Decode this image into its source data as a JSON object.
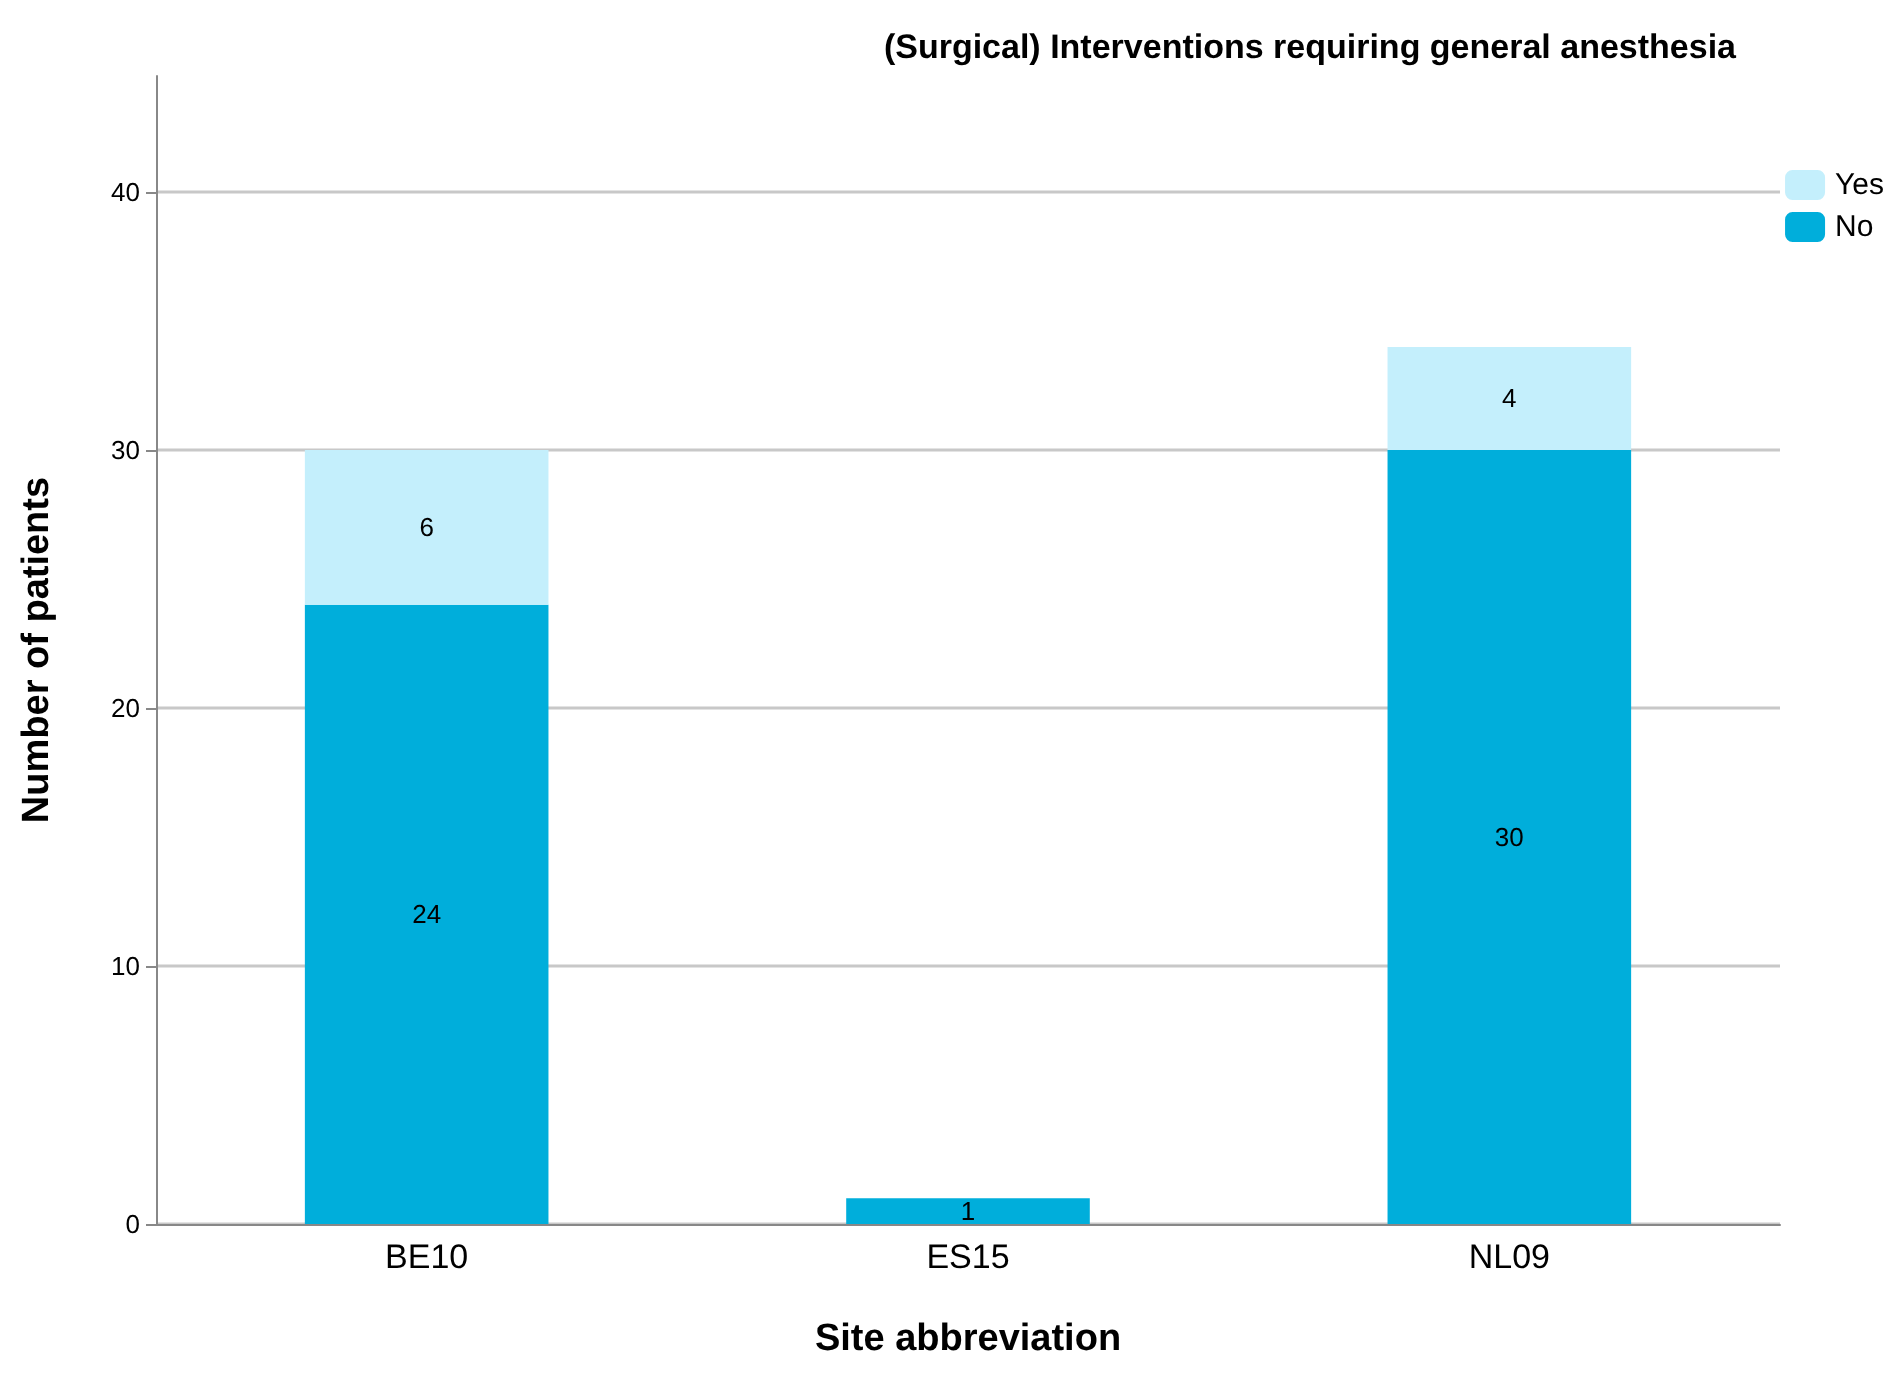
{
  "chart_data": {
    "type": "bar",
    "title": "(Surgical) Interventions requiring general anesthesia",
    "xlabel": "Site abbreviation",
    "ylabel": "Number of patients",
    "categories": [
      "BE10",
      "ES15",
      "NL09"
    ],
    "stacked": true,
    "series": [
      {
        "name": "No",
        "color": "#00aedb",
        "values": [
          24,
          1,
          30
        ]
      },
      {
        "name": "Yes",
        "color": "#c4effc",
        "values": [
          6,
          null,
          4
        ]
      }
    ],
    "ylim": [
      0,
      44.5
    ],
    "yticks": [
      0,
      10,
      20,
      30,
      40
    ],
    "grid": "y",
    "legend": "top right",
    "data_labels": true
  }
}
